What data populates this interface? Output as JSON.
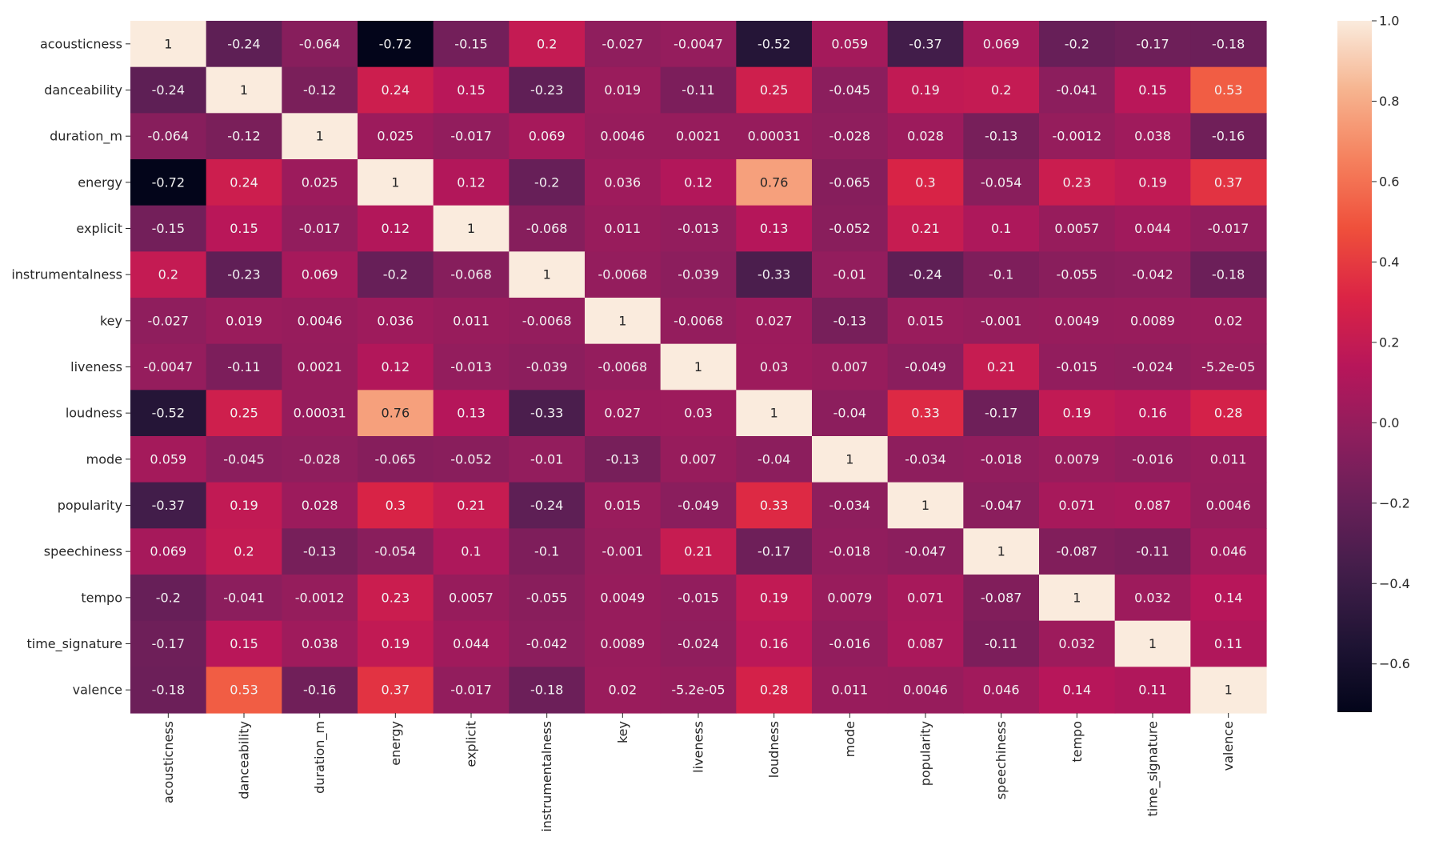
{
  "chart_data": {
    "type": "heatmap",
    "title": "",
    "xlabel": "",
    "ylabel": "",
    "colormap": "rocket",
    "vmin": -0.72,
    "vmax": 1.0,
    "labels": [
      "acousticness",
      "danceability",
      "duration_m",
      "energy",
      "explicit",
      "instrumentalness",
      "key",
      "liveness",
      "loudness",
      "mode",
      "popularity",
      "speechiness",
      "tempo",
      "time_signature",
      "valence"
    ],
    "cell_text": [
      [
        "1",
        "-0.24",
        "-0.064",
        "-0.72",
        "-0.15",
        "0.2",
        "-0.027",
        "-0.0047",
        "-0.52",
        "0.059",
        "-0.37",
        "0.069",
        "-0.2",
        "-0.17",
        "-0.18"
      ],
      [
        "-0.24",
        "1",
        "-0.12",
        "0.24",
        "0.15",
        "-0.23",
        "0.019",
        "-0.11",
        "0.25",
        "-0.045",
        "0.19",
        "0.2",
        "-0.041",
        "0.15",
        "0.53"
      ],
      [
        "-0.064",
        "-0.12",
        "1",
        "0.025",
        "-0.017",
        "0.069",
        "0.0046",
        "0.0021",
        "0.00031",
        "-0.028",
        "0.028",
        "-0.13",
        "-0.0012",
        "0.038",
        "-0.16"
      ],
      [
        "-0.72",
        "0.24",
        "0.025",
        "1",
        "0.12",
        "-0.2",
        "0.036",
        "0.12",
        "0.76",
        "-0.065",
        "0.3",
        "-0.054",
        "0.23",
        "0.19",
        "0.37"
      ],
      [
        "-0.15",
        "0.15",
        "-0.017",
        "0.12",
        "1",
        "-0.068",
        "0.011",
        "-0.013",
        "0.13",
        "-0.052",
        "0.21",
        "0.1",
        "0.0057",
        "0.044",
        "-0.017"
      ],
      [
        "0.2",
        "-0.23",
        "0.069",
        "-0.2",
        "-0.068",
        "1",
        "-0.0068",
        "-0.039",
        "-0.33",
        "-0.01",
        "-0.24",
        "-0.1",
        "-0.055",
        "-0.042",
        "-0.18"
      ],
      [
        "-0.027",
        "0.019",
        "0.0046",
        "0.036",
        "0.011",
        "-0.0068",
        "1",
        "-0.0068",
        "0.027",
        "-0.13",
        "0.015",
        "-0.001",
        "0.0049",
        "0.0089",
        "0.02"
      ],
      [
        "-0.0047",
        "-0.11",
        "0.0021",
        "0.12",
        "-0.013",
        "-0.039",
        "-0.0068",
        "1",
        "0.03",
        "0.007",
        "-0.049",
        "0.21",
        "-0.015",
        "-0.024",
        "-5.2e-05"
      ],
      [
        "-0.52",
        "0.25",
        "0.00031",
        "0.76",
        "0.13",
        "-0.33",
        "0.027",
        "0.03",
        "1",
        "-0.04",
        "0.33",
        "-0.17",
        "0.19",
        "0.16",
        "0.28"
      ],
      [
        "0.059",
        "-0.045",
        "-0.028",
        "-0.065",
        "-0.052",
        "-0.01",
        "-0.13",
        "0.007",
        "-0.04",
        "1",
        "-0.034",
        "-0.018",
        "0.0079",
        "-0.016",
        "0.011"
      ],
      [
        "-0.37",
        "0.19",
        "0.028",
        "0.3",
        "0.21",
        "-0.24",
        "0.015",
        "-0.049",
        "0.33",
        "-0.034",
        "1",
        "-0.047",
        "0.071",
        "0.087",
        "0.0046"
      ],
      [
        "0.069",
        "0.2",
        "-0.13",
        "-0.054",
        "0.1",
        "-0.1",
        "-0.001",
        "0.21",
        "-0.17",
        "-0.018",
        "-0.047",
        "1",
        "-0.087",
        "-0.11",
        "0.046"
      ],
      [
        "-0.2",
        "-0.041",
        "-0.0012",
        "0.23",
        "0.0057",
        "-0.055",
        "0.0049",
        "-0.015",
        "0.19",
        "0.0079",
        "0.071",
        "-0.087",
        "1",
        "0.032",
        "0.14"
      ],
      [
        "-0.17",
        "0.15",
        "0.038",
        "0.19",
        "0.044",
        "-0.042",
        "0.0089",
        "-0.024",
        "0.16",
        "-0.016",
        "0.087",
        "-0.11",
        "0.032",
        "1",
        "0.11"
      ],
      [
        "-0.18",
        "0.53",
        "-0.16",
        "0.37",
        "-0.017",
        "-0.18",
        "0.02",
        "-5.2e-05",
        "0.28",
        "0.011",
        "0.0046",
        "0.046",
        "0.14",
        "0.11",
        "1"
      ]
    ],
    "colorbar": {
      "range": [
        -0.72,
        1.0
      ],
      "ticks": [
        1.0,
        0.8,
        0.6,
        0.4,
        0.2,
        0.0,
        -0.2,
        -0.4,
        -0.6
      ],
      "tick_labels": [
        "1.0",
        "0.8",
        "0.6",
        "0.4",
        "0.2",
        "0.0",
        "−0.2",
        "−0.4",
        "−0.6"
      ]
    },
    "text_colors": {
      "light": "#f2f2f2",
      "dark": "#262626"
    }
  }
}
